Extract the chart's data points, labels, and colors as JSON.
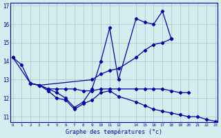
{
  "title": "Graphe des températures (°c)",
  "bg_color": "#d4eef0",
  "line_color": "#0000aa",
  "grid_color": "#aacdd0",
  "xlim": [
    -0.3,
    23.3
  ],
  "ylim": [
    10.7,
    17.15
  ],
  "yticks": [
    11,
    12,
    13,
    14,
    15,
    16,
    17
  ],
  "xtick_labels": [
    "0",
    "1",
    "2",
    "3",
    "4",
    "5",
    "6",
    "7",
    "8",
    "9",
    "10",
    "11",
    "12",
    "14",
    "15",
    "16",
    "17",
    "18",
    "19",
    "20",
    "21",
    "22",
    "23"
  ],
  "series": [
    {
      "x": [
        0,
        1,
        2,
        3,
        4,
        5,
        6,
        7,
        8,
        9,
        10,
        11,
        12,
        14,
        15,
        16,
        17,
        18
      ],
      "y": [
        14.2,
        13.8,
        12.8,
        12.7,
        12.5,
        12.3,
        12.0,
        11.5,
        11.8,
        12.5,
        14.0,
        15.8,
        13.0,
        16.3,
        16.1,
        16.0,
        16.7,
        15.2
      ]
    },
    {
      "x": [
        0,
        2,
        3,
        9,
        10,
        11,
        12,
        14,
        15,
        16,
        17,
        18
      ],
      "y": [
        14.2,
        12.8,
        12.7,
        13.0,
        13.3,
        13.5,
        13.6,
        14.2,
        14.6,
        14.9,
        15.0,
        15.2
      ]
    },
    {
      "x": [
        2,
        3,
        4,
        5,
        6,
        7,
        8,
        9,
        10,
        11,
        12,
        14,
        15,
        16,
        17,
        18,
        19,
        20
      ],
      "y": [
        12.8,
        12.7,
        12.5,
        12.5,
        12.5,
        12.5,
        12.4,
        12.4,
        12.5,
        12.5,
        12.5,
        12.5,
        12.5,
        12.5,
        12.5,
        12.4,
        12.3,
        12.3
      ]
    },
    {
      "x": [
        2,
        3,
        4,
        5,
        6,
        7,
        8,
        9,
        10,
        11,
        12,
        14,
        15,
        16,
        17,
        18,
        19,
        20,
        21,
        22,
        23
      ],
      "y": [
        12.8,
        12.7,
        12.4,
        12.0,
        11.9,
        11.4,
        11.7,
        11.9,
        12.3,
        12.4,
        12.1,
        11.8,
        11.6,
        11.4,
        11.3,
        11.2,
        11.1,
        11.0,
        11.0,
        10.85,
        10.75
      ]
    }
  ]
}
